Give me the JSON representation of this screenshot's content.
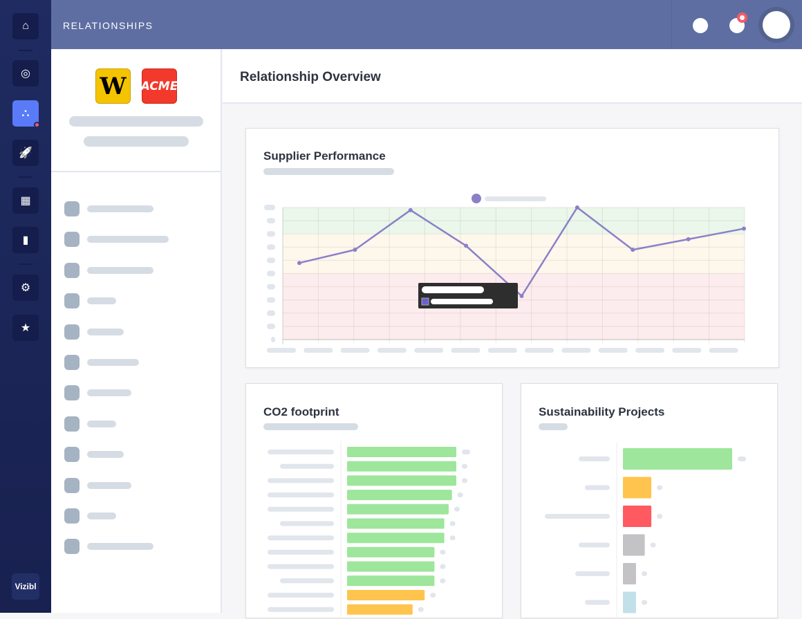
{
  "header": {
    "title": "RELATIONSHIPS",
    "notification_badge_color": "#f45b69"
  },
  "nav": {
    "items": [
      {
        "icon": "home-icon",
        "glyph": "⌂"
      },
      {
        "icon": "target-icon",
        "glyph": "◎"
      },
      {
        "icon": "network-icon",
        "glyph": "⛬",
        "active": true
      },
      {
        "icon": "rocket-icon",
        "glyph": "🚀"
      },
      {
        "icon": "building-icon",
        "glyph": "▦"
      },
      {
        "icon": "bar-chart-icon",
        "glyph": "▮"
      },
      {
        "icon": "gear-icon",
        "glyph": "⚙"
      },
      {
        "icon": "star-icon",
        "glyph": "★"
      }
    ],
    "brand": "Vizibl"
  },
  "left_panel": {
    "logos": [
      {
        "text": "W",
        "color": "#f5c400"
      },
      {
        "text": "ACME",
        "color": "#f2392b"
      }
    ]
  },
  "main": {
    "title": "Relationship Overview"
  },
  "chart_data": [
    {
      "type": "line",
      "title": "Supplier Performance",
      "ylim": [
        0,
        10
      ],
      "grid": true,
      "legend": "top-center",
      "bands": [
        {
          "from": 8,
          "to": 10,
          "color": "#eaf7ea"
        },
        {
          "from": 5,
          "to": 8,
          "color": "#fdf7ec"
        },
        {
          "from": 0,
          "to": 5,
          "color": "#fdeced"
        }
      ],
      "series": [
        {
          "color": "#8b80c8",
          "values": [
            5.8,
            6.8,
            9.8,
            7.1,
            3.3,
            10,
            6.8,
            7.6,
            8.4
          ]
        }
      ],
      "grid_columns": 13
    },
    {
      "type": "bar",
      "orientation": "horizontal",
      "title": "CO2 footprint",
      "values": [
        100,
        100,
        100,
        96,
        93,
        89,
        89,
        80,
        80,
        80,
        71,
        60
      ],
      "colors": [
        "#9de69b",
        "#9de69b",
        "#9de69b",
        "#9de69b",
        "#9de69b",
        "#9de69b",
        "#9de69b",
        "#9de69b",
        "#9de69b",
        "#9de69b",
        "#ffc44d",
        "#ffc44d"
      ]
    },
    {
      "type": "bar",
      "orientation": "horizontal",
      "title": "Sustainability Projects",
      "values": [
        100,
        26,
        26,
        20,
        12,
        12
      ],
      "colors": [
        "#9de69b",
        "#ffc44d",
        "#ff5a60",
        "#c3c3c5",
        "#c3c3c5",
        "#c2e0ea"
      ]
    }
  ]
}
